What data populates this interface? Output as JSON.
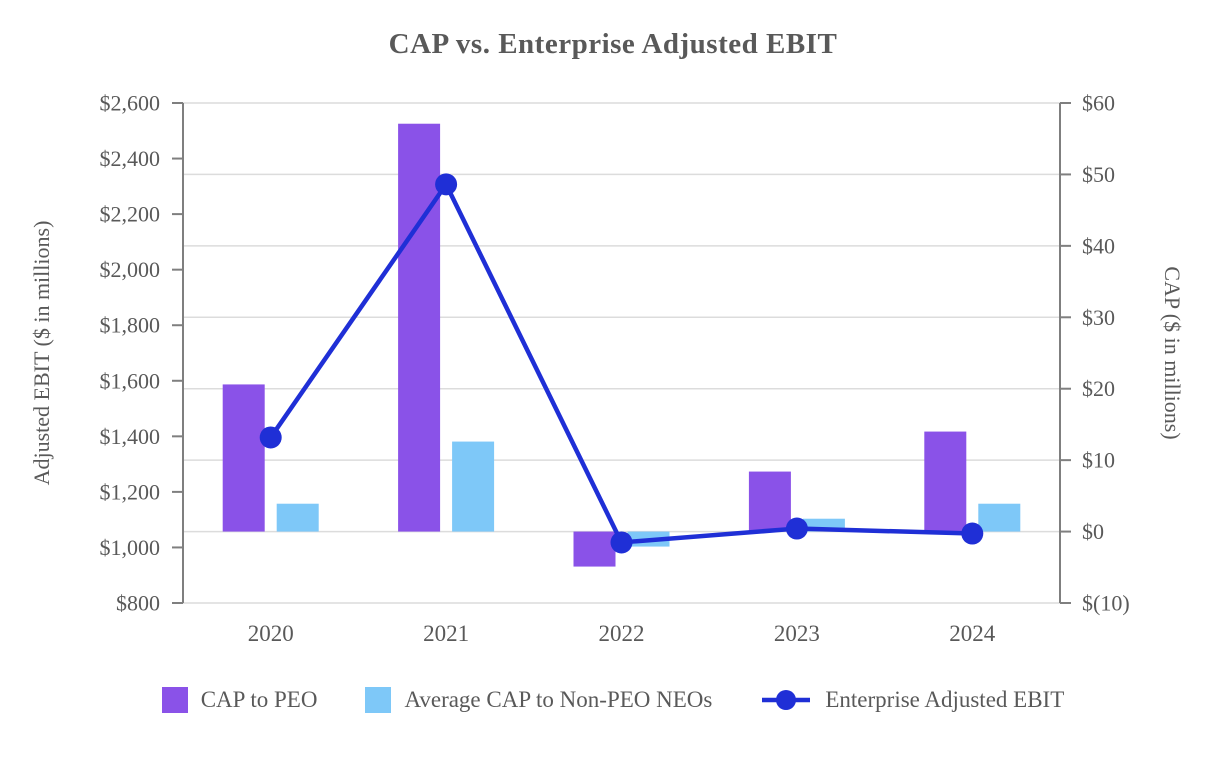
{
  "title": "CAP vs. Enterprise Adjusted EBIT",
  "left_axis": {
    "title": "Adjusted EBIT ($ in millions)",
    "tick_labels": [
      "$2,600",
      "$2,400",
      "$2,200",
      "$2,000",
      "$1,800",
      "$1,600",
      "$1,400",
      "$1,200",
      "$1,000",
      "$800"
    ]
  },
  "right_axis": {
    "title": "CAP ($ in millions)",
    "tick_labels": [
      "$60",
      "$50",
      "$40",
      "$30",
      "$20",
      "$10",
      "$0",
      "$(10)"
    ]
  },
  "chart_data": {
    "type": "bar+line combo",
    "title": "CAP vs. Enterprise Adjusted EBIT",
    "categories": [
      "2020",
      "2021",
      "2022",
      "2023",
      "2024"
    ],
    "series": [
      {
        "name": "CAP to PEO",
        "type": "bar",
        "axis": "right",
        "color": "#8A52E8",
        "values": [
          20.6,
          57.1,
          -4.9,
          8.4,
          14.0
        ]
      },
      {
        "name": "Average CAP to Non-PEO NEOs",
        "type": "bar",
        "axis": "right",
        "color": "#7EC8F8",
        "values": [
          3.9,
          12.6,
          -2.1,
          1.8,
          3.9
        ]
      },
      {
        "name": "Enterprise Adjusted EBIT",
        "type": "line",
        "axis": "left",
        "color": "#1F2FD6",
        "values": [
          1396,
          2307,
          1018,
          1068,
          1050
        ]
      }
    ],
    "xlabel": "",
    "ylabel_left": "Adjusted EBIT ($ in millions)",
    "ylabel_right": "CAP ($ in millions)",
    "left_ylim": [
      800,
      2600
    ],
    "right_ylim": [
      -10,
      60
    ],
    "grid": true,
    "gridlines_follow": "right_axis",
    "legend_position": "bottom"
  },
  "colors": {
    "text": "#595959",
    "axis": "#7F7F7F",
    "grid": "#DCDCDC",
    "bar_peo": "#8A52E8",
    "bar_neo": "#7EC8F8",
    "line_ebit": "#1F2FD6"
  }
}
